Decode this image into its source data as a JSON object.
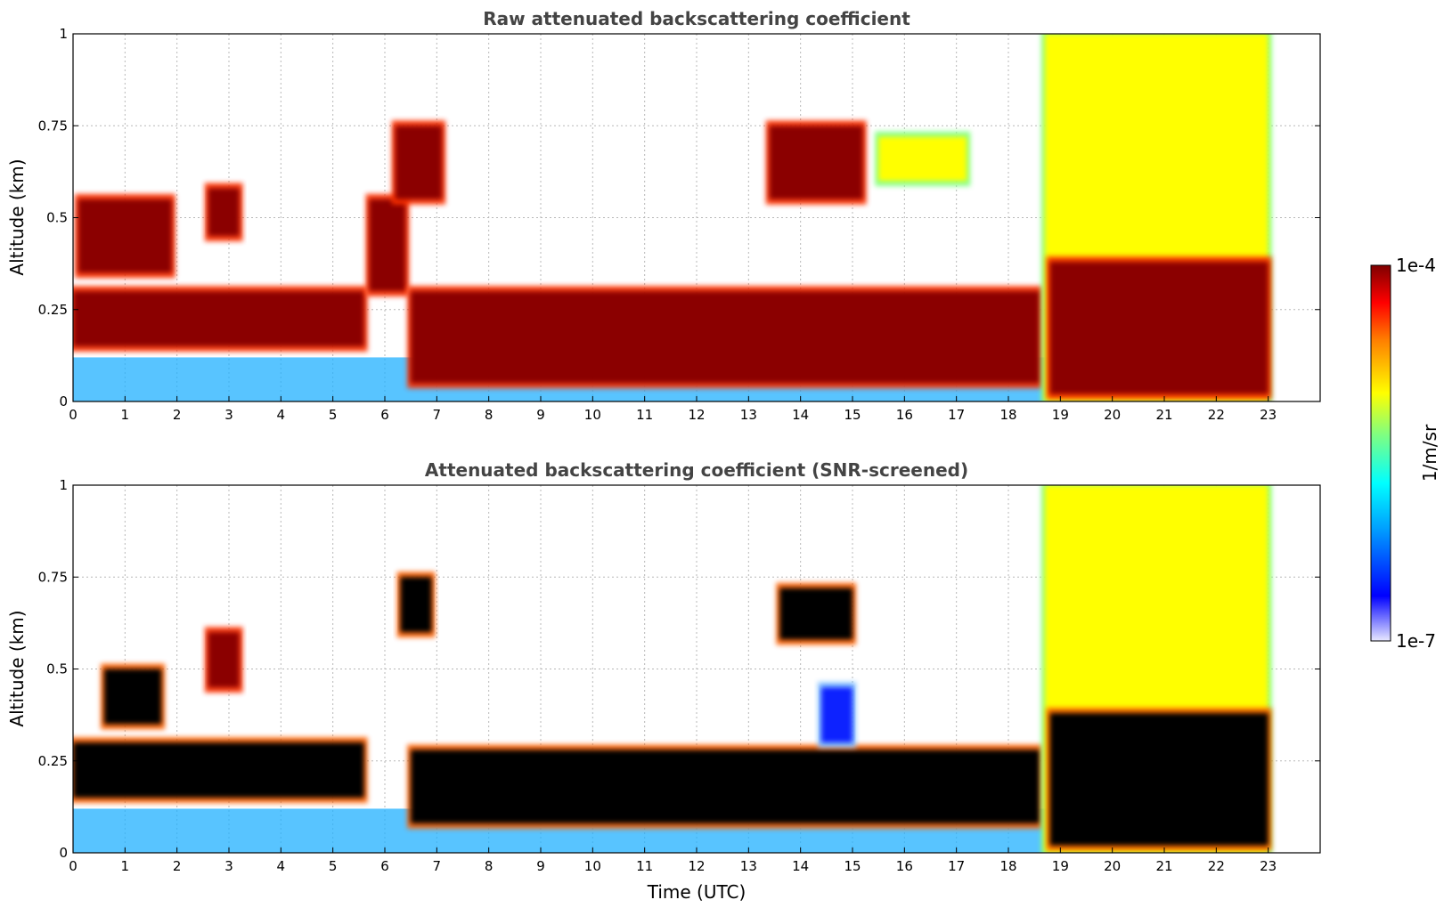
{
  "chart_data": [
    {
      "type": "heatmap",
      "title": "Raw attenuated backscattering coefficient",
      "ylabel": "Altitude (km)",
      "xlim": [
        0,
        24
      ],
      "ylim": [
        0,
        1
      ],
      "x_ticks": [
        "0",
        "1",
        "2",
        "3",
        "4",
        "5",
        "6",
        "7",
        "8",
        "9",
        "10",
        "11",
        "12",
        "13",
        "14",
        "15",
        "16",
        "17",
        "18",
        "19",
        "20",
        "21",
        "22",
        "23"
      ],
      "y_ticks": [
        "0",
        "0.25",
        "0.5",
        "0.75",
        "1"
      ],
      "grid": true,
      "features": [
        {
          "t_start": 0.0,
          "t_end": 5.6,
          "alt_bottom": 0.15,
          "alt_top": 0.3,
          "level": "high"
        },
        {
          "t_start": 0.1,
          "t_end": 1.9,
          "alt_bottom": 0.35,
          "alt_top": 0.55,
          "level": "high"
        },
        {
          "t_start": 2.6,
          "t_end": 3.2,
          "alt_bottom": 0.45,
          "alt_top": 0.58,
          "level": "high"
        },
        {
          "t_start": 5.7,
          "t_end": 6.4,
          "alt_bottom": 0.3,
          "alt_top": 0.55,
          "level": "high"
        },
        {
          "t_start": 6.2,
          "t_end": 7.1,
          "alt_bottom": 0.55,
          "alt_top": 0.75,
          "level": "high"
        },
        {
          "t_start": 6.5,
          "t_end": 18.6,
          "alt_bottom": 0.05,
          "alt_top": 0.3,
          "level": "high"
        },
        {
          "t_start": 13.4,
          "t_end": 15.2,
          "alt_bottom": 0.55,
          "alt_top": 0.75,
          "level": "high"
        },
        {
          "t_start": 15.5,
          "t_end": 17.2,
          "alt_bottom": 0.6,
          "alt_top": 0.72,
          "level": "medium"
        },
        {
          "t_start": 18.7,
          "t_end": 23.0,
          "alt_bottom": 0.0,
          "alt_top": 1.0,
          "level": "medium"
        },
        {
          "t_start": 18.8,
          "t_end": 23.0,
          "alt_bottom": 0.02,
          "alt_top": 0.38,
          "level": "high"
        }
      ]
    },
    {
      "type": "heatmap",
      "title": "Attenuated backscattering coefficient (SNR-screened)",
      "xlabel": "Time (UTC)",
      "ylabel": "Altitude (km)",
      "xlim": [
        0,
        24
      ],
      "ylim": [
        0,
        1
      ],
      "x_ticks": [
        "0",
        "1",
        "2",
        "3",
        "4",
        "5",
        "6",
        "7",
        "8",
        "9",
        "10",
        "11",
        "12",
        "13",
        "14",
        "15",
        "16",
        "17",
        "18",
        "19",
        "20",
        "21",
        "22",
        "23"
      ],
      "y_ticks": [
        "0",
        "0.25",
        "0.5",
        "0.75",
        "1"
      ],
      "grid": true,
      "features": [
        {
          "t_start": 0.0,
          "t_end": 5.6,
          "alt_bottom": 0.15,
          "alt_top": 0.3,
          "level": "saturated"
        },
        {
          "t_start": 0.6,
          "t_end": 1.7,
          "alt_bottom": 0.35,
          "alt_top": 0.5,
          "level": "saturated"
        },
        {
          "t_start": 2.6,
          "t_end": 3.2,
          "alt_bottom": 0.45,
          "alt_top": 0.6,
          "level": "high"
        },
        {
          "t_start": 6.3,
          "t_end": 6.9,
          "alt_bottom": 0.6,
          "alt_top": 0.75,
          "level": "saturated"
        },
        {
          "t_start": 6.5,
          "t_end": 18.6,
          "alt_bottom": 0.08,
          "alt_top": 0.28,
          "level": "saturated"
        },
        {
          "t_start": 13.6,
          "t_end": 15.0,
          "alt_bottom": 0.58,
          "alt_top": 0.72,
          "level": "saturated"
        },
        {
          "t_start": 14.4,
          "t_end": 15.0,
          "alt_bottom": 0.3,
          "alt_top": 0.45,
          "level": "low"
        },
        {
          "t_start": 18.7,
          "t_end": 23.0,
          "alt_bottom": 0.0,
          "alt_top": 1.0,
          "level": "medium"
        },
        {
          "t_start": 18.8,
          "t_end": 23.0,
          "alt_bottom": 0.02,
          "alt_top": 0.38,
          "level": "saturated"
        }
      ]
    }
  ],
  "colorbar": {
    "label": "1/m/sr",
    "max_label": "1e-4",
    "min_label": "1e-7",
    "scale": "log",
    "colormap": "jet",
    "colors": [
      "#e8e8ff",
      "#0000ff",
      "#00a0ff",
      "#00ffff",
      "#80ff80",
      "#ffff00",
      "#ff8000",
      "#ff0000",
      "#800000"
    ]
  },
  "colors": {
    "saturated": "#000000",
    "high": "#8b0000",
    "medium": "#ffff00",
    "low": "#1020ff",
    "edge": "#00ffff",
    "title": "#444444"
  }
}
